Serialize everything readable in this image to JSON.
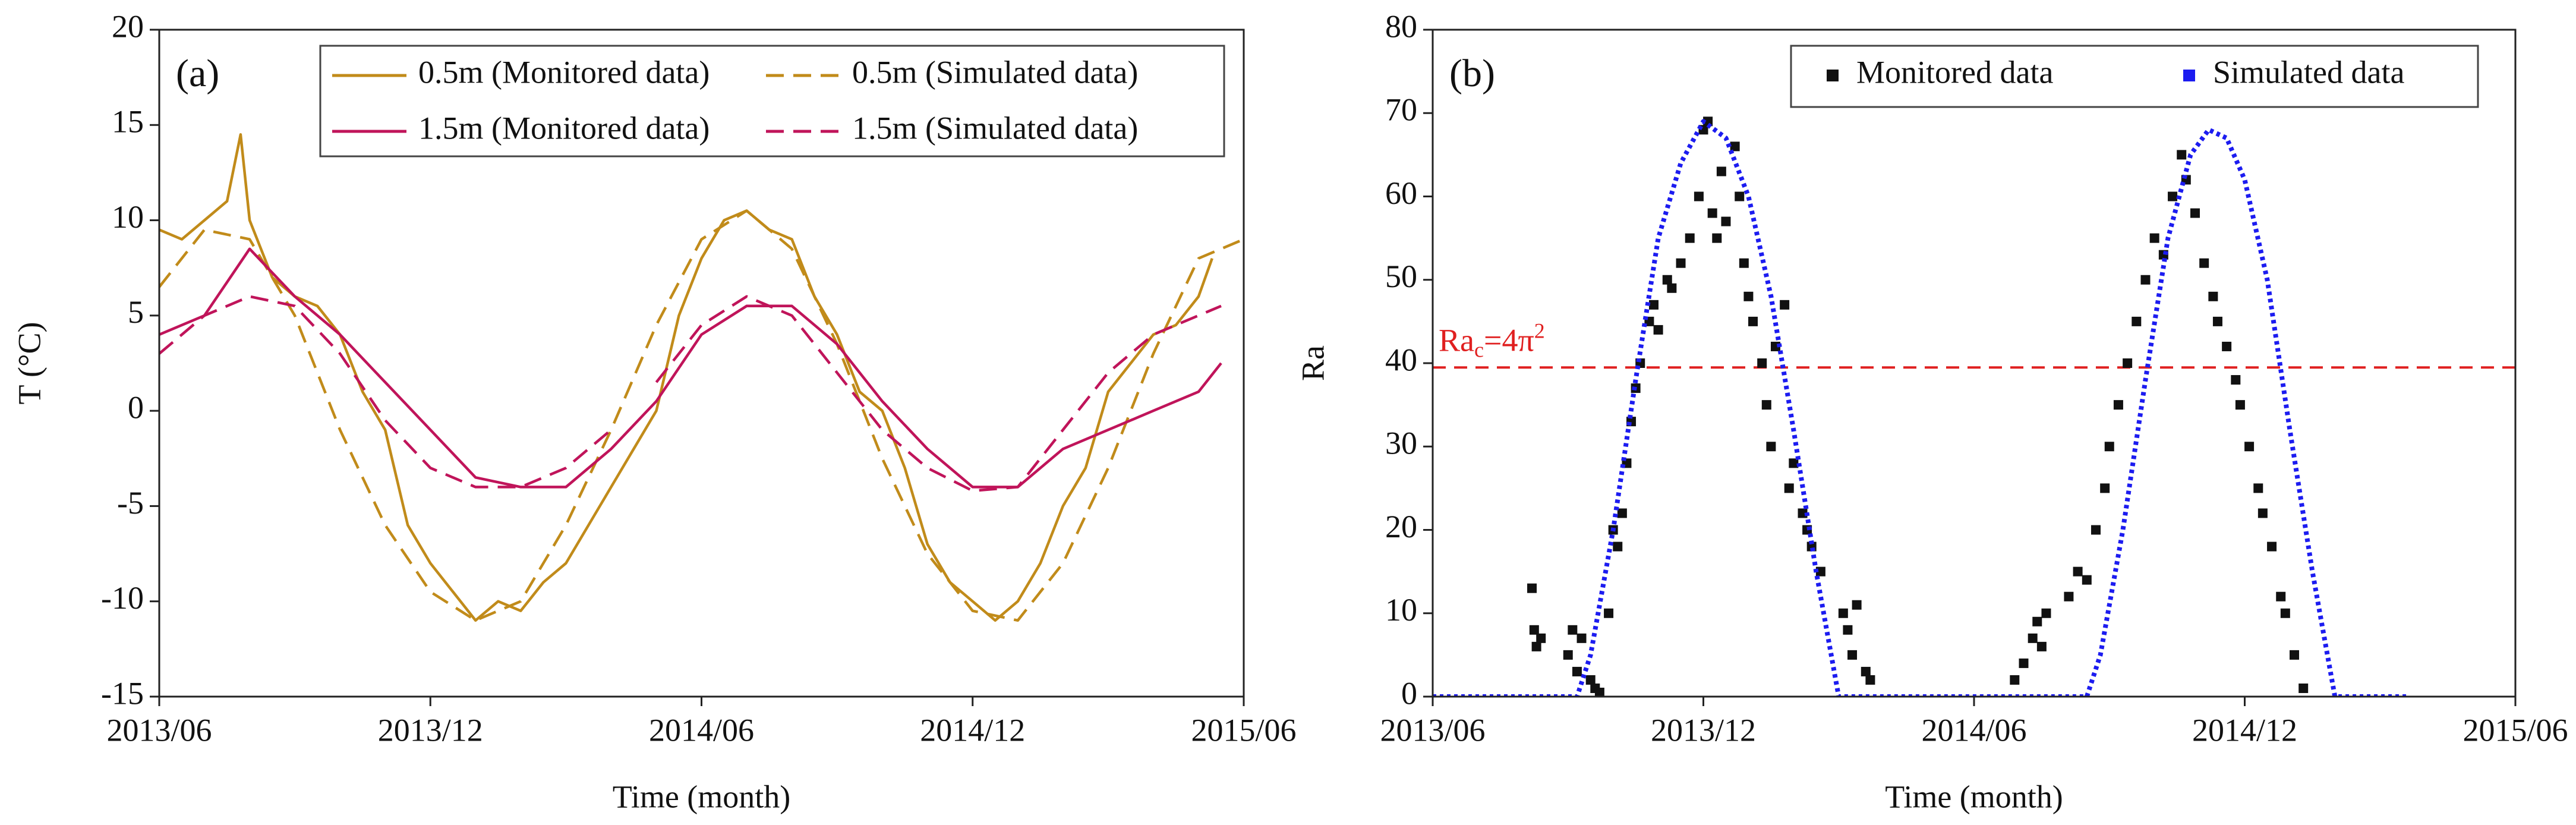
{
  "chart_data": [
    {
      "type": "line",
      "panel": "(a)",
      "xlabel": "Time (month)",
      "ylabel": "T (°C)",
      "xlim": [
        0,
        24
      ],
      "ylim": [
        -15,
        20
      ],
      "xticks": [
        {
          "value": 0,
          "label": "2013/06"
        },
        {
          "value": 6,
          "label": "2013/12"
        },
        {
          "value": 12,
          "label": "2014/06"
        },
        {
          "value": 18,
          "label": "2014/12"
        },
        {
          "value": 24,
          "label": "2015/06"
        }
      ],
      "yticks": [
        -15,
        -10,
        -5,
        0,
        5,
        10,
        15,
        20
      ],
      "legend": "upper right",
      "series": [
        {
          "name": "0.5m (Monitored data)",
          "color": "#c18b1a",
          "dash": "solid",
          "x": [
            0,
            0.5,
            1,
            1.5,
            1.8,
            2,
            2.5,
            3,
            3.5,
            4,
            4.5,
            5,
            5.5,
            6,
            6.5,
            7,
            7.5,
            8,
            8.5,
            9,
            9.5,
            10,
            10.5,
            11,
            11.5,
            12,
            12.5,
            13,
            13.5,
            14,
            14.5,
            15,
            15.5,
            16,
            16.5,
            17,
            17.5,
            18,
            18.5,
            19,
            19.5,
            20,
            20.5,
            21,
            21.5,
            22,
            22.5,
            23,
            23.3
          ],
          "values": [
            9.5,
            9,
            10,
            11,
            14.5,
            10,
            7,
            6,
            5.5,
            4,
            1,
            -1,
            -6,
            -8,
            -9.5,
            -11,
            -10,
            -10.5,
            -9,
            -8,
            -6,
            -4,
            -2,
            0,
            5,
            8,
            10,
            10.5,
            9.5,
            9,
            6,
            4,
            1,
            0,
            -3,
            -7,
            -9,
            -10,
            -11,
            -10,
            -8,
            -5,
            -3,
            1,
            2.5,
            4,
            4.5,
            6,
            8
          ]
        },
        {
          "name": "0.5m (Simulated data)",
          "color": "#c18b1a",
          "dash": "dashed",
          "x": [
            0,
            1,
            2,
            3,
            4,
            5,
            6,
            7,
            8,
            9,
            10,
            11,
            12,
            13,
            14,
            15,
            16,
            17,
            18,
            19,
            20,
            21,
            22,
            23,
            24
          ],
          "values": [
            6.5,
            9.5,
            9,
            5,
            -1,
            -6,
            -9.5,
            -11,
            -10,
            -6,
            -1,
            4.5,
            9,
            10.5,
            8.5,
            3.5,
            -2.5,
            -7.5,
            -10.5,
            -11,
            -8,
            -3,
            3,
            8,
            9
          ]
        },
        {
          "name": "1.5m (Monitored data)",
          "color": "#c0145a",
          "dash": "solid",
          "x": [
            0,
            1,
            2,
            3,
            4,
            5,
            6,
            7,
            8,
            9,
            10,
            11,
            12,
            13,
            14,
            15,
            16,
            17,
            18,
            19,
            20,
            21,
            22,
            23,
            23.5
          ],
          "values": [
            4,
            5,
            8.5,
            6,
            4,
            1.5,
            -1,
            -3.5,
            -4,
            -4,
            -2,
            0.5,
            4,
            5.5,
            5.5,
            3.5,
            0.5,
            -2,
            -4,
            -4,
            -2,
            -1,
            0,
            1,
            2.5
          ]
        },
        {
          "name": "1.5m (Simulated data)",
          "color": "#c0145a",
          "dash": "dashed",
          "x": [
            0,
            1,
            2,
            3,
            4,
            5,
            6,
            7,
            8,
            9,
            10,
            10.5,
            11,
            12,
            13,
            14,
            15,
            16,
            17,
            18,
            19,
            20,
            21,
            22,
            23.5
          ],
          "values": [
            3,
            5,
            6,
            5.5,
            3,
            -0.5,
            -3,
            -4,
            -4,
            -3,
            -1,
            null,
            1.5,
            4.5,
            6,
            5,
            2,
            -1,
            -3,
            -4.2,
            -4,
            -1,
            2,
            4,
            5.5
          ]
        }
      ]
    },
    {
      "type": "scatter",
      "panel": "(b)",
      "xlabel": "Time (month)",
      "ylabel": "Ra",
      "xlim": [
        0,
        24
      ],
      "ylim": [
        0,
        80
      ],
      "xticks": [
        {
          "value": 0,
          "label": "2013/06"
        },
        {
          "value": 6,
          "label": "2013/12"
        },
        {
          "value": 12,
          "label": "2014/06"
        },
        {
          "value": 18,
          "label": "2014/12"
        },
        {
          "value": 24,
          "label": "2015/06"
        }
      ],
      "yticks": [
        0,
        10,
        20,
        30,
        40,
        50,
        60,
        70,
        80
      ],
      "legend": "upper right",
      "annotation": {
        "text": "Ra",
        "sub": "c",
        "rest": "=4π",
        "sup": "2",
        "value": 39.48,
        "color": "#e02020"
      },
      "series": [
        {
          "name": "Monitored data",
          "color": "#111111",
          "type": "scatter",
          "x": [
            2.2,
            2.25,
            2.3,
            2.4,
            3.0,
            3.1,
            3.2,
            3.3,
            3.5,
            3.6,
            3.7,
            3.9,
            4.0,
            4.1,
            4.2,
            4.3,
            4.4,
            4.5,
            4.6,
            4.8,
            4.9,
            5.0,
            5.2,
            5.3,
            5.5,
            5.7,
            5.9,
            6.0,
            6.1,
            6.2,
            6.3,
            6.4,
            6.5,
            6.7,
            6.8,
            6.9,
            7.0,
            7.1,
            7.3,
            7.4,
            7.5,
            7.6,
            7.8,
            7.9,
            8.0,
            8.2,
            8.3,
            8.4,
            8.6,
            9.1,
            9.2,
            9.3,
            9.4,
            9.6,
            9.7,
            12.9,
            13.1,
            13.3,
            13.4,
            13.5,
            13.6,
            14.1,
            14.3,
            14.5,
            14.7,
            14.9,
            15.0,
            15.2,
            15.4,
            15.6,
            15.8,
            16.0,
            16.2,
            16.4,
            16.6,
            16.7,
            16.9,
            17.1,
            17.3,
            17.4,
            17.6,
            17.8,
            17.9,
            18.1,
            18.3,
            18.4,
            18.6,
            18.8,
            18.9,
            19.1,
            19.3
          ],
          "values": [
            13,
            8,
            6,
            7,
            5,
            8,
            3,
            7,
            2,
            1,
            0.5,
            10,
            20,
            18,
            22,
            28,
            33,
            37,
            40,
            45,
            47,
            44,
            50,
            49,
            52,
            55,
            60,
            68,
            69,
            58,
            55,
            63,
            57,
            66,
            60,
            52,
            48,
            45,
            40,
            35,
            30,
            42,
            47,
            25,
            28,
            22,
            20,
            18,
            15,
            10,
            8,
            5,
            11,
            3,
            2,
            2,
            4,
            7,
            9,
            6,
            10,
            12,
            15,
            14,
            20,
            25,
            30,
            35,
            40,
            45,
            50,
            55,
            53,
            60,
            65,
            62,
            58,
            52,
            48,
            45,
            42,
            38,
            35,
            30,
            25,
            22,
            18,
            12,
            10,
            5,
            1
          ]
        },
        {
          "name": "Simulated data",
          "color": "#1c1cf0",
          "type": "dotted",
          "x": [
            0,
            3.2,
            3.5,
            4,
            4.5,
            5,
            5.5,
            6,
            6.5,
            7,
            7.5,
            8,
            8.5,
            9,
            14.5,
            14.8,
            15.3,
            15.8,
            16.3,
            16.8,
            17.2,
            17.6,
            18,
            18.5,
            19,
            19.5,
            20,
            21.6
          ],
          "values": [
            0,
            0,
            5,
            20,
            38,
            55,
            64,
            69,
            67,
            60,
            48,
            32,
            15,
            0,
            0,
            5,
            20,
            38,
            55,
            65,
            68,
            67,
            62,
            50,
            32,
            15,
            0,
            0
          ]
        }
      ]
    }
  ]
}
